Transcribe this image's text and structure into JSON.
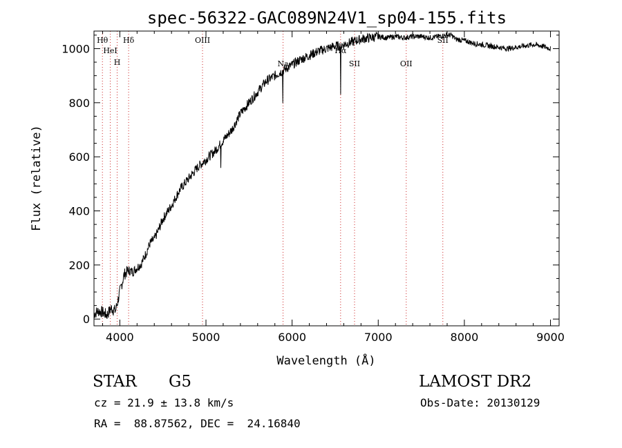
{
  "chart_data": {
    "type": "line",
    "title": "spec-56322-GAC089N24V1_sp04-155.fits",
    "xlabel": "Wavelength (Å)",
    "ylabel": "Flux (relative)",
    "xlim": [
      3700,
      9100
    ],
    "ylim": [
      -25,
      1065
    ],
    "xticks": [
      4000,
      5000,
      6000,
      7000,
      8000,
      9000
    ],
    "yticks": [
      0,
      200,
      400,
      600,
      800,
      1000
    ],
    "grid": false,
    "series": [
      {
        "x": [
          3700,
          3750,
          3800,
          3850,
          3900,
          3950,
          4000,
          4050,
          4100,
          4150,
          4200,
          4250,
          4300,
          4350,
          4400,
          4450,
          4500,
          4600,
          4700,
          4800,
          4900,
          5000,
          5100,
          5200,
          5300,
          5400,
          5500,
          5600,
          5700,
          5800,
          5900,
          6000,
          6100,
          6200,
          6300,
          6400,
          6500,
          6560,
          6600,
          6700,
          6800,
          6900,
          7000,
          7100,
          7200,
          7300,
          7400,
          7500,
          7600,
          7700,
          7800,
          7850,
          7900,
          8000,
          8100,
          8200,
          8300,
          8400,
          8500,
          8600,
          8700,
          8800,
          8900,
          9000
        ],
        "values": [
          20,
          30,
          25,
          15,
          40,
          30,
          100,
          165,
          180,
          175,
          190,
          205,
          240,
          280,
          295,
          330,
          370,
          420,
          480,
          520,
          560,
          590,
          620,
          660,
          700,
          760,
          800,
          840,
          880,
          900,
          920,
          940,
          960,
          975,
          990,
          1000,
          1010,
          1010,
          1015,
          1025,
          1035,
          1040,
          1045,
          1040,
          1045,
          1040,
          1045,
          1045,
          1040,
          1045,
          1050,
          1050,
          1035,
          1030,
          1020,
          1015,
          1010,
          1005,
          1000,
          1005,
          1010,
          1015,
          1010,
          1000
        ]
      }
    ],
    "lines": [
      {
        "label": "Hθ",
        "x": 3798
      },
      {
        "label": "HeI",
        "x": 3889
      },
      {
        "label": "H",
        "x": 3969
      },
      {
        "label": "Hδ",
        "x": 4102
      },
      {
        "label": "OIII",
        "x": 4960
      },
      {
        "label": "Na",
        "x": 5895
      },
      {
        "label": "Hα",
        "x": 6563
      },
      {
        "label": "SII",
        "x": 6725
      },
      {
        "label": "OII",
        "x": 7325
      },
      {
        "label": "SII",
        "x": 7750
      }
    ]
  },
  "info": {
    "class": "STAR",
    "subclass": "G5",
    "survey": "LAMOST DR2",
    "cz": "cz = 21.9 ± 13.8 km/s",
    "obs_date": "Obs-Date: 20130129",
    "coords": "RA =  88.87562, DEC =  24.16840"
  }
}
